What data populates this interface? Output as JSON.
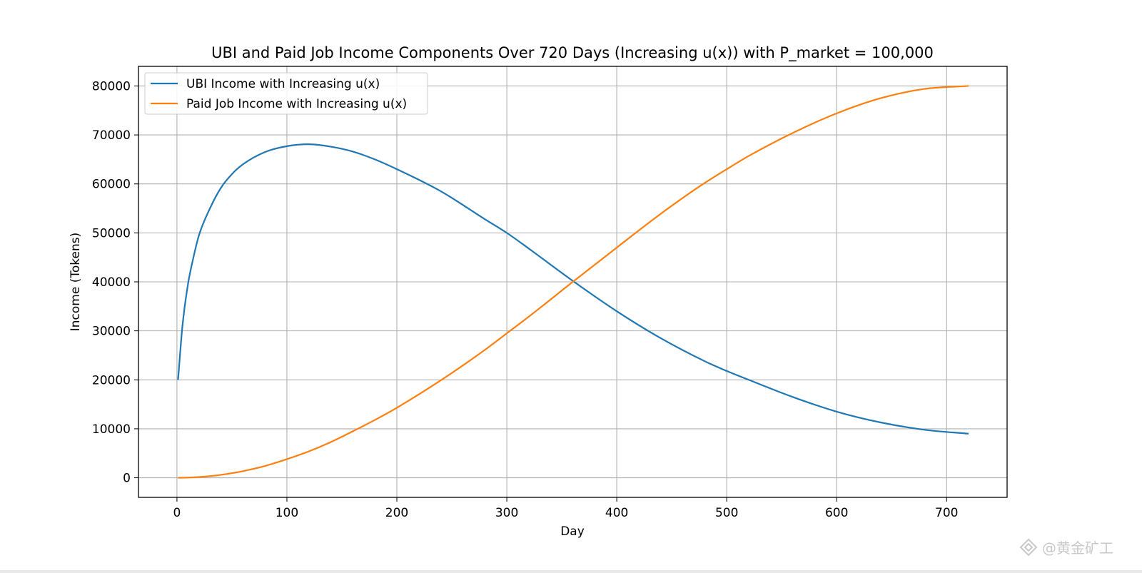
{
  "chart_data": {
    "type": "line",
    "title": "UBI and Paid Job Income Components Over 720 Days (Increasing u(x)) with P_market = 100,000",
    "xlabel": "Day",
    "ylabel": "Income (Tokens)",
    "xlim": [
      -35,
      755
    ],
    "ylim": [
      -4000,
      84000
    ],
    "xticks": [
      0,
      100,
      200,
      300,
      400,
      500,
      600,
      700
    ],
    "yticks": [
      0,
      10000,
      20000,
      30000,
      40000,
      50000,
      60000,
      70000,
      80000
    ],
    "grid": true,
    "legend_position": "top-left",
    "x": [
      1,
      5,
      10,
      15,
      20,
      30,
      40,
      50,
      60,
      80,
      100,
      120,
      140,
      160,
      180,
      200,
      240,
      280,
      300,
      320,
      360,
      400,
      440,
      480,
      500,
      520,
      560,
      600,
      640,
      680,
      720
    ],
    "series": [
      {
        "name": "UBI Income with Increasing u(x)",
        "color": "#1f77b4",
        "values": [
          20000,
          31000,
          39500,
          45000,
          49500,
          55000,
          59200,
          62000,
          64000,
          66500,
          67700,
          68100,
          67600,
          66600,
          65000,
          63000,
          58500,
          52800,
          50000,
          46800,
          40200,
          34000,
          28500,
          23800,
          21800,
          20000,
          16500,
          13500,
          11300,
          9800,
          9000
        ]
      },
      {
        "name": "Paid Job Income with Increasing u(x)",
        "color": "#ff7f0e",
        "values": [
          0,
          10,
          40,
          90,
          150,
          340,
          600,
          940,
          1350,
          2400,
          3800,
          5400,
          7300,
          9500,
          11800,
          14300,
          19900,
          26100,
          29500,
          32900,
          40000,
          47000,
          53900,
          60200,
          63000,
          65700,
          70400,
          74400,
          77500,
          79400,
          80000
        ]
      }
    ]
  },
  "watermark": {
    "text": "@黄金矿工",
    "icon": "diamond-logo-icon"
  }
}
